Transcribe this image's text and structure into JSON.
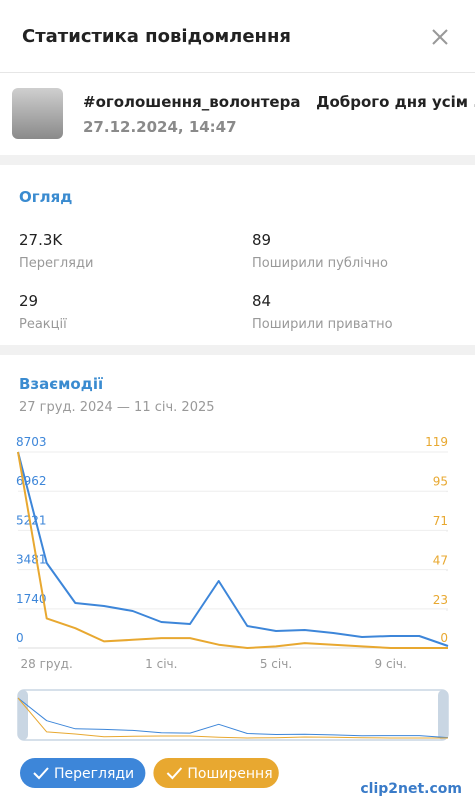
{
  "header": {
    "title": "Статистика повідомлення"
  },
  "message": {
    "text": "#оголошення_волонтера   Доброго дня усім ...",
    "date": "27.12.2024, 14:47"
  },
  "overview": {
    "title": "Огляд",
    "stats": [
      {
        "value": "27.3K",
        "label": "Перегляди"
      },
      {
        "value": "89",
        "label": "Поширили публічно"
      },
      {
        "value": "29",
        "label": "Реакції"
      },
      {
        "value": "84",
        "label": "Поширили приватно"
      }
    ]
  },
  "chart_data": {
    "type": "line",
    "title": "Взаємодії",
    "subtitle": "27 груд. 2024 — 11 січ. 2025",
    "categories": [
      null,
      "28 груд.",
      null,
      null,
      null,
      "1 січ.",
      null,
      null,
      null,
      "5 січ.",
      null,
      null,
      null,
      "9 січ.",
      null,
      null
    ],
    "series": [
      {
        "name": "Перегляди",
        "color": "#3d86d9",
        "values": [
          8703,
          3774,
          1998,
          1865,
          1643,
          1154,
          1066,
          2975,
          977,
          755,
          799,
          666,
          488,
          533,
          533,
          89
        ]
      },
      {
        "name": "Поширення",
        "color": "#e8a830",
        "axis": "y2",
        "values": [
          119,
          18,
          12,
          4,
          5,
          6,
          6,
          2,
          0,
          1,
          3,
          2,
          1,
          0,
          0,
          0
        ]
      }
    ],
    "ylim": [
      0,
      8703
    ],
    "yticks": [
      0,
      1740,
      3481,
      5221,
      6962,
      8703
    ],
    "y2lim": [
      0,
      119
    ],
    "y2ticks": [
      0,
      23,
      47,
      71,
      95,
      119
    ],
    "grid": true
  },
  "watermark": "clip2net.com"
}
